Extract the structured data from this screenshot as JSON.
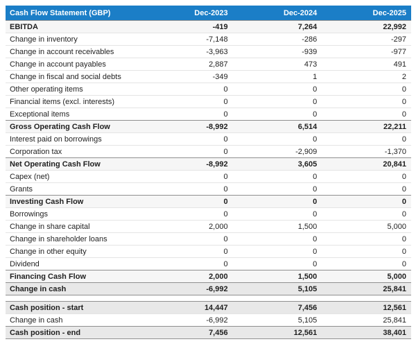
{
  "chart_data": {
    "type": "table",
    "title": "Cash Flow Statement (GBP)",
    "columns": [
      "Dec-2023",
      "Dec-2024",
      "Dec-2025"
    ],
    "rows": [
      {
        "label": "EBITDA",
        "values": [
          "-419",
          "7,264",
          "22,992"
        ],
        "style": "subtotal"
      },
      {
        "label": "Change in inventory",
        "values": [
          "-7,148",
          "-286",
          "-297"
        ],
        "style": "normal"
      },
      {
        "label": "Change in account receivables",
        "values": [
          "-3,963",
          "-939",
          "-977"
        ],
        "style": "normal"
      },
      {
        "label": "Change in account payables",
        "values": [
          "2,887",
          "473",
          "491"
        ],
        "style": "normal"
      },
      {
        "label": "Change in fiscal and social debts",
        "values": [
          "-349",
          "1",
          "2"
        ],
        "style": "normal"
      },
      {
        "label": "Other operating items",
        "values": [
          "0",
          "0",
          "0"
        ],
        "style": "normal"
      },
      {
        "label": "Financial items (excl. interests)",
        "values": [
          "0",
          "0",
          "0"
        ],
        "style": "normal"
      },
      {
        "label": "Exceptional items",
        "values": [
          "0",
          "0",
          "0"
        ],
        "style": "normal"
      },
      {
        "label": "Gross Operating Cash Flow",
        "values": [
          "-8,992",
          "6,514",
          "22,211"
        ],
        "style": "subtotal"
      },
      {
        "label": "Interest paid on borrowings",
        "values": [
          "0",
          "0",
          "0"
        ],
        "style": "normal"
      },
      {
        "label": "Corporation tax",
        "values": [
          "0",
          "-2,909",
          "-1,370"
        ],
        "style": "normal"
      },
      {
        "label": "Net Operating Cash Flow",
        "values": [
          "-8,992",
          "3,605",
          "20,841"
        ],
        "style": "subtotal"
      },
      {
        "label": "Capex (net)",
        "values": [
          "0",
          "0",
          "0"
        ],
        "style": "normal"
      },
      {
        "label": "Grants",
        "values": [
          "0",
          "0",
          "0"
        ],
        "style": "normal"
      },
      {
        "label": "Investing Cash Flow",
        "values": [
          "0",
          "0",
          "0"
        ],
        "style": "subtotal"
      },
      {
        "label": "Borrowings",
        "values": [
          "0",
          "0",
          "0"
        ],
        "style": "normal"
      },
      {
        "label": "Change in share capital",
        "values": [
          "2,000",
          "1,500",
          "5,000"
        ],
        "style": "normal"
      },
      {
        "label": "Change in shareholder loans",
        "values": [
          "0",
          "0",
          "0"
        ],
        "style": "normal"
      },
      {
        "label": "Change in other equity",
        "values": [
          "0",
          "0",
          "0"
        ],
        "style": "normal"
      },
      {
        "label": "Dividend",
        "values": [
          "0",
          "0",
          "0"
        ],
        "style": "normal"
      },
      {
        "label": "Financing Cash Flow",
        "values": [
          "2,000",
          "1,500",
          "5,000"
        ],
        "style": "subtotal"
      },
      {
        "label": "Change in cash",
        "values": [
          "-6,992",
          "5,105",
          "25,841"
        ],
        "style": "strong-closed"
      },
      {
        "label": "",
        "values": [
          "",
          "",
          ""
        ],
        "style": "spacer"
      },
      {
        "label": "Cash position - start",
        "values": [
          "14,447",
          "7,456",
          "12,561"
        ],
        "style": "strong"
      },
      {
        "label": "Change in cash",
        "values": [
          "-6,992",
          "5,105",
          "25,841"
        ],
        "style": "normal"
      },
      {
        "label": "Cash position - end",
        "values": [
          "7,456",
          "12,561",
          "38,401"
        ],
        "style": "strong-closed"
      }
    ],
    "colors": {
      "header_bg": "#1b7ec7",
      "header_text": "#ffffff",
      "subtotal_bg": "#f6f6f6",
      "strong_bg": "#e8e8e8",
      "row_divider": "#e4e4e4",
      "dark_border": "#8f8f8f",
      "text": "#1f1f1f"
    }
  }
}
